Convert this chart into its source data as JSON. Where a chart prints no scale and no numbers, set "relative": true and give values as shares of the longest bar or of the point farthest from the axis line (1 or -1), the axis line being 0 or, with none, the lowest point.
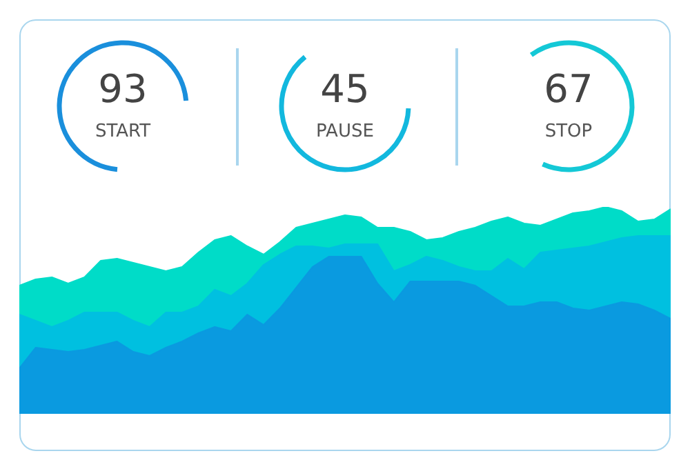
{
  "chart_data": [
    {
      "type": "other",
      "title": "START",
      "annotations": [
        "93"
      ]
    },
    {
      "type": "other",
      "title": "PAUSE",
      "annotations": [
        "45"
      ]
    },
    {
      "type": "other",
      "title": "STOP",
      "annotations": [
        "67"
      ]
    },
    {
      "type": "area",
      "relative": true,
      "tick_labels": false,
      "legend": false,
      "categories": [
        null,
        null,
        null,
        null,
        null,
        null,
        null,
        null,
        null,
        null,
        null,
        null,
        null,
        null,
        null,
        null,
        null,
        null,
        null,
        null,
        null,
        null,
        null,
        null,
        null,
        null,
        null,
        null,
        null,
        null,
        null,
        null,
        null,
        null,
        null,
        null,
        null,
        null,
        null,
        null,
        null
      ],
      "series": [
        {
          "color": "#00dcc8",
          "values": [
            0.62,
            0.65,
            0.66,
            0.63,
            0.66,
            0.74,
            0.75,
            0.73,
            0.71,
            0.69,
            0.71,
            0.78,
            0.84,
            0.86,
            0.81,
            0.77,
            0.83,
            0.9,
            0.92,
            0.94,
            0.96,
            0.95,
            0.9,
            0.9,
            0.88,
            0.84,
            0.85,
            0.88,
            0.9,
            0.93,
            0.95,
            0.92,
            0.91,
            0.94,
            0.97,
            0.98,
            1,
            0.98,
            0.93,
            0.94,
            0.99
          ]
        },
        {
          "color": "#00c0e0",
          "values": [
            0.48,
            0.45,
            0.42,
            0.45,
            0.49,
            0.49,
            0.49,
            0.45,
            0.42,
            0.49,
            0.49,
            0.52,
            0.6,
            0.57,
            0.63,
            0.72,
            0.77,
            0.81,
            0.81,
            0.8,
            0.82,
            0.82,
            0.82,
            0.69,
            0.72,
            0.76,
            0.74,
            0.71,
            0.69,
            0.69,
            0.75,
            0.7,
            0.78,
            0.79,
            0.8,
            0.81,
            0.83,
            0.85,
            0.86,
            0.86,
            0.86
          ]
        },
        {
          "color": "#0a9ae0",
          "values": [
            0.22,
            0.32,
            0.31,
            0.3,
            0.31,
            0.33,
            0.35,
            0.3,
            0.28,
            0.32,
            0.35,
            0.39,
            0.42,
            0.4,
            0.48,
            0.43,
            0.51,
            0.61,
            0.71,
            0.76,
            0.76,
            0.76,
            0.63,
            0.54,
            0.64,
            0.64,
            0.64,
            0.64,
            0.62,
            0.57,
            0.52,
            0.52,
            0.54,
            0.54,
            0.51,
            0.5,
            0.52,
            0.54,
            0.53,
            0.5,
            0.46
          ]
        }
      ]
    }
  ]
}
